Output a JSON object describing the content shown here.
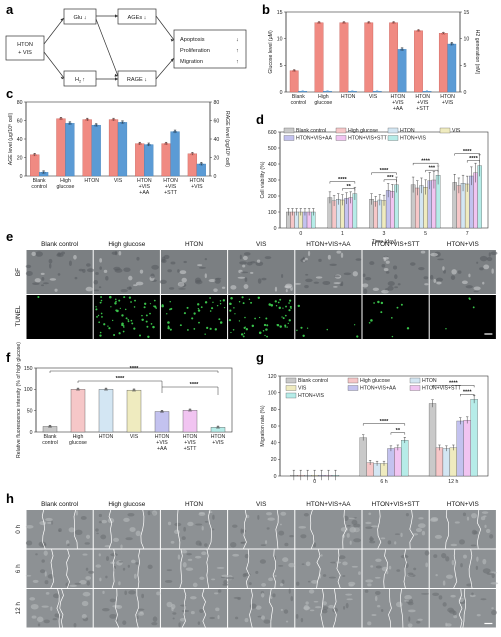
{
  "panels": {
    "a": {
      "label": "a",
      "input": [
        "HTON",
        "+ VIS"
      ],
      "glu": "Glu ↓",
      "h2": "H",
      "h2_sub": "2",
      "h2_arrow": "↑",
      "ages": "AGEs ↓",
      "rage": "RAGE ↓",
      "outcomes": [
        "Apoptosis",
        "Proliferation",
        "Migration"
      ],
      "outcome_arrows": [
        "↓",
        "↑",
        "↑"
      ]
    },
    "b": {
      "label": "b"
    },
    "c": {
      "label": "c"
    },
    "d": {
      "label": "d"
    },
    "e": {
      "label": "e",
      "headers": [
        "Blank control",
        "High glucose",
        "HTON",
        "VIS",
        "HTON+VIS+AA",
        "HTON+VIS+STT",
        "HTON+VIS"
      ],
      "rows": [
        "BF",
        "TUNEL"
      ],
      "tunel_density": [
        0.02,
        0.9,
        0.55,
        0.85,
        0.12,
        0.15,
        0.05
      ]
    },
    "f": {
      "label": "f"
    },
    "g": {
      "label": "g"
    },
    "h": {
      "label": "h",
      "headers": [
        "Blank control",
        "High glucose",
        "HTON",
        "VIS",
        "HTON+VIS+AA",
        "HTON+VIS+STT",
        "HTON+VIS"
      ],
      "rows": [
        "0 h",
        "6 h",
        "12 h"
      ]
    }
  },
  "colors": {
    "blank": "#c9c9c9",
    "hg": "#f6c7c8",
    "hton": "#d3e6f3",
    "vis": "#efebbf",
    "aa": "#c3c2ef",
    "stt": "#f1c4f1",
    "htonvis": "#b6ece8",
    "salmon": "#f08a82",
    "blue": "#5b9bd5",
    "green": "#39c24a"
  },
  "chart_data": [
    {
      "panel": "b",
      "type": "bar",
      "categories": [
        "Blank\ncontrol",
        "High\nglucose",
        "HTON",
        "VIS",
        "HTON\n+VIS\n+AA",
        "HTON\n+VIS\n+STT",
        "HTON\n+VIS"
      ],
      "ylabel": "Glucose level (μM)",
      "ylabel2": "H2 generation (nM)",
      "ylim": [
        0,
        15
      ],
      "ylim2": [
        0,
        15
      ],
      "yticks": [
        "0",
        "5",
        "10",
        "15"
      ],
      "yticks2": [
        "0",
        "5",
        "10",
        "15"
      ],
      "series": [
        {
          "values": [
            4,
            13,
            13,
            13,
            13,
            11.5,
            11
          ],
          "axis": "left"
        },
        {
          "values": [
            0,
            0,
            0,
            0,
            8,
            0,
            9
          ],
          "axis": "right"
        }
      ]
    },
    {
      "panel": "c",
      "type": "bar",
      "categories": [
        "Blank\ncontrol",
        "High\nglucose",
        "HTON",
        "VIS",
        "HTON\n+VIS\n+AA",
        "HTON\n+VIS\n+STT",
        "HTON\n+VIS"
      ],
      "ylabel": "AGE level (μg/10⁶ cell)",
      "ylabel2": "RAGE level (pg/10⁶ cell)",
      "ylim": [
        0,
        80
      ],
      "ylim2": [
        0,
        80
      ],
      "yticks": [
        "0",
        "20",
        "40",
        "60",
        "80"
      ],
      "yticks2": [
        "0",
        "20",
        "40",
        "60",
        "80"
      ],
      "series": [
        {
          "values": [
            23,
            62,
            61,
            61,
            35,
            35,
            24
          ],
          "axis": "left"
        },
        {
          "values": [
            4,
            57,
            55,
            58,
            34,
            48,
            13
          ],
          "axis": "right"
        }
      ]
    },
    {
      "panel": "d",
      "type": "bar",
      "x": [
        "0",
        "1",
        "3",
        "5",
        "7"
      ],
      "xlabel": "Time (day)",
      "ylabel": "Cell viability (%)",
      "ylim": [
        0,
        600
      ],
      "yticks": [
        "0",
        "100",
        "200",
        "300",
        "400",
        "500",
        "600"
      ],
      "legend": [
        "Blank control",
        "High glucose",
        "HTON",
        "VIS",
        "HTON+VIS+AA",
        "HTON+VIS+STT",
        "HTON+VIS"
      ],
      "series": [
        {
          "name": "Blank control",
          "values": [
            100,
            190,
            180,
            270,
            285
          ]
        },
        {
          "name": "High glucose",
          "values": [
            100,
            170,
            165,
            250,
            265
          ]
        },
        {
          "name": "HTON",
          "values": [
            100,
            180,
            175,
            265,
            280
          ]
        },
        {
          "name": "VIS",
          "values": [
            100,
            175,
            172,
            255,
            275
          ]
        },
        {
          "name": "HTON+VIS+AA",
          "values": [
            100,
            185,
            235,
            295,
            325
          ]
        },
        {
          "name": "HTON+VIS+STT",
          "values": [
            100,
            190,
            230,
            300,
            345
          ]
        },
        {
          "name": "HTON+VIS",
          "values": [
            100,
            215,
            270,
            330,
            390
          ]
        }
      ],
      "sig": [
        "****",
        "**",
        "****",
        "***",
        "****",
        "***",
        "****",
        "****"
      ]
    },
    {
      "panel": "f",
      "type": "bar",
      "categories": [
        "Blank\ncontrol",
        "High\nglucose",
        "HTON",
        "VIS",
        "HTON\n+VIS\n+AA",
        "HTON\n+VIS\n+STT",
        "HTON\n+VIS"
      ],
      "ylabel": "Relative fluorescence intensity (% of high glucose)",
      "ylim": [
        0,
        150
      ],
      "yticks": [
        "0",
        "50",
        "100",
        "150"
      ],
      "values": [
        13,
        100,
        100,
        98,
        48,
        51,
        11
      ],
      "sig": [
        "****",
        "****",
        "****"
      ]
    },
    {
      "panel": "g",
      "type": "bar",
      "x": [
        "0",
        "6 h",
        "12 h"
      ],
      "ylabel": "Migration rate (%)",
      "ylim": [
        0,
        120
      ],
      "yticks": [
        "0",
        "20",
        "40",
        "60",
        "80",
        "100",
        "120"
      ],
      "legend": [
        "Blank control",
        "High glucose",
        "HTON",
        "VIS",
        "HTON+VIS+AA",
        "HTON+VIS+STT",
        "HTON+VIS"
      ],
      "series": [
        {
          "name": "Blank control",
          "values": [
            0,
            46,
            87
          ]
        },
        {
          "name": "High glucose",
          "values": [
            0,
            16,
            34
          ]
        },
        {
          "name": "HTON",
          "values": [
            0,
            15,
            33
          ]
        },
        {
          "name": "VIS",
          "values": [
            0,
            15,
            34
          ]
        },
        {
          "name": "HTON+VIS+AA",
          "values": [
            0,
            33,
            66
          ]
        },
        {
          "name": "HTON+VIS+STT",
          "values": [
            0,
            34,
            67
          ]
        },
        {
          "name": "HTON+VIS",
          "values": [
            0,
            43,
            92
          ]
        }
      ],
      "sig": [
        "****",
        "**",
        "****",
        "****"
      ]
    }
  ]
}
